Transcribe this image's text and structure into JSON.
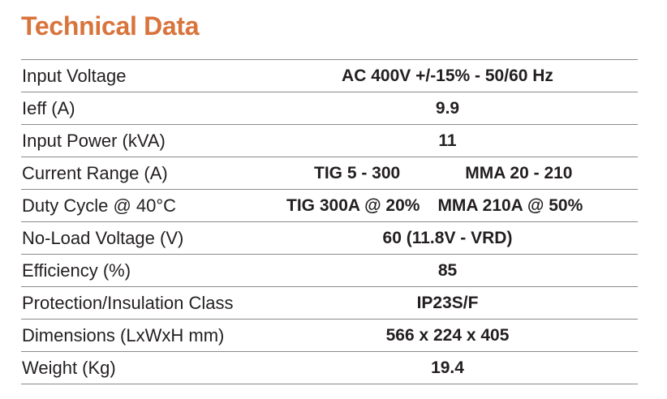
{
  "title": "Technical Data",
  "rows": [
    {
      "label": "Input Voltage",
      "value": "AC 400V +/-15% - 50/60 Hz"
    },
    {
      "label": "Ieff (A)",
      "value": "9.9"
    },
    {
      "label": "Input Power (kVA)",
      "value": "11"
    },
    {
      "label": "Current Range (A)",
      "value_a": "TIG 5 - 300",
      "value_b": "MMA 20 - 210"
    },
    {
      "label": "Duty Cycle @ 40°C",
      "value_a": "TIG 300A @ 20%",
      "value_b": "MMA 210A @ 50%"
    },
    {
      "label": "No-Load Voltage (V)",
      "value": "60 (11.8V - VRD)"
    },
    {
      "label": "Efficiency (%)",
      "value": "85"
    },
    {
      "label": "Protection/Insulation Class",
      "value": "IP23S/F"
    },
    {
      "label": "Dimensions (LxWxH mm)",
      "value": "566 x 224 x 405"
    },
    {
      "label": "Weight (Kg)",
      "value": "19.4"
    }
  ]
}
